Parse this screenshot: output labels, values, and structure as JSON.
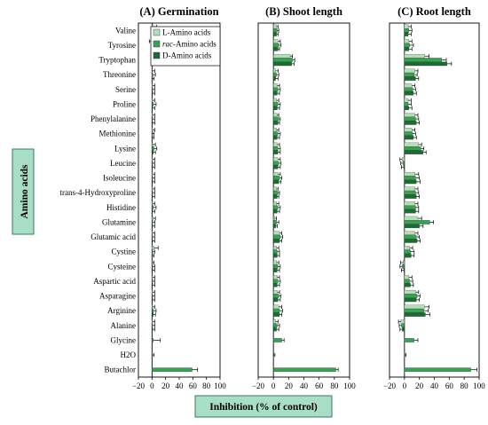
{
  "figure": {
    "ylabel": "Amino acids",
    "xlabel": "Inhibition (% of control)",
    "colors": {
      "L": "#b7dcb9",
      "rac": "#3f9e55",
      "D": "#1f6a33",
      "axis_box_fill": "#a8dec5",
      "axis_box_border": "#3a7a5c"
    }
  },
  "chart_data": {
    "type": "bar",
    "orientation": "horizontal",
    "legend": {
      "placement": "top-left of panel A",
      "entries": [
        {
          "key": "L",
          "prefix": "L",
          "rest": "-Amino acids"
        },
        {
          "key": "rac",
          "prefix": "rac",
          "rest": "-Amino acids"
        },
        {
          "key": "D",
          "prefix": "D",
          "rest": "-Amino acids"
        }
      ]
    },
    "categories": [
      "Valine",
      "Tyrosine",
      "Tryptophan",
      "Threonine",
      "Serine",
      "Proline",
      "Phenylalanine",
      "Methionine",
      "Lysine",
      "Leucine",
      "Isoleucine",
      "trans-4-Hydroxyproline",
      "Histidine",
      "Glutamine",
      "Glutamic acid",
      "Cystine",
      "Cysteine",
      "Aspartic acid",
      "Asparagine",
      "Arginine",
      "Alanine",
      "Glycine",
      "H2O",
      "Butachlor"
    ],
    "xlim": [
      -20,
      100
    ],
    "xticks": [
      "-20",
      "0",
      "20",
      "40",
      "60",
      "80",
      "100"
    ],
    "panels": [
      {
        "title": "(A) Germination",
        "series": [
          {
            "key": "L",
            "values": [
              2,
              -1,
              2,
              0,
              1,
              1,
              1,
              1,
              1,
              1,
              1,
              1,
              1,
              2,
              1,
              3,
              0,
              1,
              1,
              1,
              1,
              null,
              null,
              null
            ]
          },
          {
            "key": "rac",
            "values": [
              1,
              0,
              6,
              1,
              1,
              2,
              1,
              0,
              3,
              1,
              1,
              1,
              2,
              1,
              1,
              1,
              1,
              1,
              1,
              2,
              1,
              2,
              0,
              59
            ]
          },
          {
            "key": "D",
            "values": [
              1,
              1,
              2,
              0,
              1,
              1,
              1,
              0,
              2,
              1,
              1,
              1,
              1,
              1,
              1,
              0,
              1,
              1,
              1,
              2,
              1,
              null,
              null,
              null
            ]
          }
        ],
        "errors": [
          [
            5,
            3,
            4,
            4,
            3,
            3,
            3,
            3,
            4,
            3,
            3,
            3,
            3,
            3,
            3,
            6,
            3,
            3,
            3,
            3,
            3,
            null,
            null,
            null
          ],
          [
            4,
            3,
            4,
            4,
            3,
            4,
            3,
            3,
            4,
            3,
            3,
            3,
            4,
            3,
            3,
            3,
            3,
            3,
            3,
            4,
            3,
            10,
            3,
            8
          ],
          [
            3,
            3,
            4,
            3,
            3,
            3,
            3,
            3,
            3,
            3,
            3,
            3,
            3,
            3,
            3,
            3,
            3,
            3,
            3,
            3,
            3,
            null,
            null,
            null
          ]
        ]
      },
      {
        "title": "(B) Shoot length",
        "series": [
          {
            "key": "L",
            "values": [
              4,
              6,
              22,
              3,
              5,
              4,
              5,
              4,
              5,
              6,
              6,
              4,
              4,
              2,
              8,
              4,
              4,
              5,
              5,
              7,
              3,
              null,
              null,
              null
            ]
          },
          {
            "key": "rac",
            "values": [
              5,
              7,
              25,
              4,
              6,
              6,
              7,
              6,
              6,
              7,
              8,
              6,
              6,
              4,
              9,
              5,
              6,
              6,
              7,
              8,
              5,
              11,
              0,
              82
            ]
          },
          {
            "key": "D",
            "values": [
              4,
              6,
              24,
              3,
              5,
              5,
              6,
              5,
              6,
              6,
              7,
              5,
              5,
              3,
              8,
              5,
              5,
              5,
              6,
              8,
              4,
              null,
              null,
              null
            ]
          }
        ],
        "errors": [
          [
            2,
            3,
            3,
            3,
            3,
            3,
            2,
            3,
            3,
            3,
            3,
            2,
            3,
            2,
            3,
            3,
            3,
            3,
            3,
            4,
            3,
            null,
            null,
            null
          ],
          [
            2,
            3,
            3,
            3,
            3,
            3,
            2,
            3,
            3,
            3,
            3,
            2,
            3,
            3,
            3,
            3,
            3,
            3,
            3,
            4,
            3,
            3,
            2,
            3
          ],
          [
            2,
            2,
            3,
            3,
            3,
            3,
            2,
            3,
            3,
            3,
            3,
            2,
            3,
            2,
            3,
            3,
            3,
            3,
            3,
            3,
            3,
            null,
            null,
            null
          ]
        ]
      },
      {
        "title": "(C) Root length",
        "series": [
          {
            "key": "L",
            "values": [
              5,
              6,
              27,
              14,
              10,
              5,
              14,
              10,
              19,
              -3,
              14,
              14,
              14,
              18,
              14,
              7,
              -2,
              6,
              15,
              27,
              -5,
              null,
              null,
              null
            ]
          },
          {
            "key": "rac",
            "values": [
              6,
              7,
              50,
              13,
              11,
              5,
              15,
              11,
              22,
              -2,
              15,
              15,
              15,
              34,
              16,
              8,
              -3,
              7,
              17,
              26,
              -4,
              13,
              0,
              89
            ]
          },
          {
            "key": "D",
            "values": [
              5,
              6,
              57,
              15,
              12,
              6,
              16,
              12,
              25,
              -1,
              16,
              16,
              15,
              20,
              17,
              9,
              -1,
              8,
              16,
              28,
              -3,
              null,
              null,
              null
            ]
          }
        ],
        "errors": [
          [
            4,
            4,
            6,
            4,
            4,
            4,
            4,
            4,
            4,
            3,
            5,
            4,
            4,
            5,
            4,
            4,
            3,
            4,
            4,
            6,
            3,
            null,
            null,
            null
          ],
          [
            4,
            5,
            6,
            4,
            4,
            4,
            4,
            4,
            4,
            3,
            5,
            4,
            4,
            5,
            4,
            5,
            3,
            4,
            4,
            6,
            3,
            5,
            2,
            8
          ],
          [
            4,
            4,
            6,
            4,
            4,
            4,
            4,
            4,
            4,
            3,
            5,
            4,
            4,
            5,
            4,
            4,
            3,
            4,
            4,
            6,
            3,
            null,
            null,
            null
          ]
        ]
      }
    ]
  }
}
